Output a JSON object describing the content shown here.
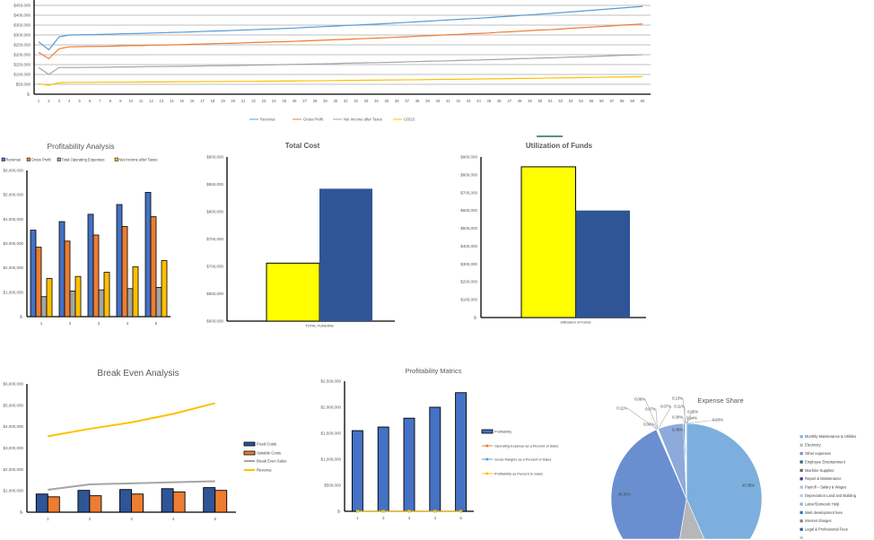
{
  "chart_data": [
    {
      "type": "line",
      "title": "",
      "grid": true,
      "legend": "bottom",
      "x": [
        "1",
        "2",
        "3",
        "4",
        "5",
        "6",
        "7",
        "8",
        "9",
        "10",
        "11",
        "12",
        "13",
        "14",
        "15",
        "16",
        "17",
        "18",
        "19",
        "20",
        "21",
        "22",
        "23",
        "24",
        "25",
        "26",
        "27",
        "28",
        "29",
        "30",
        "31",
        "32",
        "33",
        "34",
        "35",
        "36",
        "37",
        "38",
        "39",
        "40",
        "41",
        "42",
        "43",
        "44",
        "45",
        "46",
        "47",
        "48",
        "49",
        "50",
        "51",
        "52",
        "53",
        "54",
        "55",
        "56",
        "57",
        "58",
        "59",
        "60"
      ],
      "ylim": [
        0,
        450000
      ],
      "ytick_labels": [
        "$-",
        "$50,000",
        "$100,000",
        "$150,000",
        "$200,000",
        "$250,000",
        "$300,000",
        "$350,000",
        "$400,000",
        "$450,000"
      ],
      "series": [
        {
          "name": "Revenue",
          "color": "#5b9bd5",
          "values": [
            265000,
            225000,
            290000,
            300000,
            301000,
            302000,
            303000,
            304000,
            306000,
            307000,
            308000,
            310000,
            311000,
            313000,
            314000,
            316000,
            318000,
            320000,
            321000,
            323000,
            325000,
            327000,
            329000,
            331000,
            333000,
            335000,
            338000,
            340000,
            343000,
            345000,
            348000,
            350000,
            353000,
            355000,
            358000,
            361000,
            364000,
            367000,
            370000,
            373000,
            376000,
            379000,
            382000,
            385000,
            388000,
            392000,
            395000,
            399000,
            402000,
            406000,
            409000,
            413000,
            417000,
            421000,
            425000,
            429000,
            433000,
            437000,
            441000,
            445000
          ]
        },
        {
          "name": "Gross Profit",
          "color": "#ed7d31",
          "values": [
            212000,
            180000,
            230000,
            240000,
            241000,
            242000,
            242000,
            243000,
            245000,
            246000,
            246000,
            248000,
            249000,
            250000,
            251000,
            253000,
            254000,
            256000,
            257000,
            258000,
            260000,
            262000,
            263000,
            265000,
            266000,
            268000,
            270000,
            272000,
            274000,
            276000,
            278000,
            280000,
            282000,
            284000,
            286000,
            289000,
            291000,
            294000,
            296000,
            298000,
            301000,
            303000,
            306000,
            308000,
            310000,
            314000,
            316000,
            319000,
            322000,
            325000,
            327000,
            330000,
            334000,
            337000,
            340000,
            343000,
            346000,
            350000,
            353000,
            356000
          ]
        },
        {
          "name": "Net Income after Taxes",
          "color": "#a5a5a5",
          "values": [
            135000,
            100000,
            135000,
            135000,
            135000,
            136000,
            136000,
            137000,
            138000,
            138000,
            139000,
            140000,
            140000,
            141000,
            141000,
            142000,
            143000,
            144000,
            144000,
            145000,
            146000,
            147000,
            148000,
            149000,
            150000,
            151000,
            152000,
            153000,
            154000,
            155000,
            157000,
            158000,
            159000,
            160000,
            161000,
            162000,
            164000,
            165000,
            167000,
            168000,
            169000,
            171000,
            172000,
            173000,
            175000,
            176000,
            178000,
            180000,
            181000,
            183000,
            184000,
            186000,
            188000,
            189000,
            191000,
            193000,
            195000,
            197000,
            198000,
            200000
          ]
        },
        {
          "name": "COGS",
          "color": "#ffc000",
          "values": [
            53000,
            45000,
            58000,
            60000,
            60000,
            60000,
            61000,
            61000,
            61000,
            61000,
            62000,
            62000,
            62000,
            63000,
            63000,
            63000,
            64000,
            64000,
            64000,
            65000,
            65000,
            65000,
            66000,
            66000,
            67000,
            67000,
            68000,
            68000,
            69000,
            69000,
            70000,
            70000,
            71000,
            71000,
            72000,
            72000,
            73000,
            73000,
            74000,
            75000,
            75000,
            76000,
            76000,
            77000,
            78000,
            78000,
            79000,
            80000,
            80000,
            81000,
            82000,
            83000,
            83000,
            84000,
            85000,
            86000,
            87000,
            87000,
            88000,
            89000
          ]
        }
      ]
    },
    {
      "type": "bar",
      "title": "Profitability Analysis",
      "grid": false,
      "legend": "top",
      "categories": [
        "1",
        "2",
        "3",
        "4",
        "5"
      ],
      "ylim": [
        0,
        6000000
      ],
      "ytick_labels": [
        "$-",
        "$1,000,000",
        "$2,000,000",
        "$3,000,000",
        "$4,000,000",
        "$5,000,000",
        "$6,000,000"
      ],
      "series": [
        {
          "name": "Revenue",
          "color": "#4472c4",
          "values": [
            3550000,
            3900000,
            4200000,
            4600000,
            5100000
          ]
        },
        {
          "name": "Gross Profit",
          "color": "#ed7d31",
          "values": [
            2850000,
            3100000,
            3350000,
            3700000,
            4100000
          ]
        },
        {
          "name": "Total Operating Expenses",
          "color": "#a5a5a5",
          "values": [
            820000,
            1050000,
            1100000,
            1150000,
            1200000
          ]
        },
        {
          "name": "Net Income after Taxes",
          "color": "#ffc000",
          "values": [
            1570000,
            1650000,
            1820000,
            2050000,
            2300000
          ]
        }
      ]
    },
    {
      "type": "bar",
      "title": "Total Cost",
      "grid": false,
      "categories": [
        "TOTAL FUNDING"
      ],
      "ylim": [
        600000,
        900000
      ],
      "ytick_labels": [
        "$600,000",
        "$650,000",
        "$700,000",
        "$750,000",
        "$800,000",
        "$850,000",
        "$900,000"
      ],
      "series": [
        {
          "color": "#ffff00",
          "values": [
            706000
          ]
        },
        {
          "color": "#2f5597",
          "values": [
            842000
          ]
        }
      ]
    },
    {
      "type": "bar",
      "title": "Utilization of Funds",
      "grid": false,
      "categories": [
        "Utilization of Funds"
      ],
      "ylim": [
        0,
        900000
      ],
      "ytick_labels": [
        "$-",
        "$100,000",
        "$200,000",
        "$300,000",
        "$400,000",
        "$500,000",
        "$600,000",
        "$700,000",
        "$800,000",
        "$900,000"
      ],
      "series": [
        {
          "color": "#ffff00",
          "values": [
            845000
          ]
        },
        {
          "color": "#2f5597",
          "values": [
            600000
          ]
        }
      ]
    },
    {
      "type": "bar",
      "title": "Break Even Analysis",
      "grid": false,
      "legend": "right",
      "categories": [
        "1",
        "2",
        "3",
        "4",
        "5"
      ],
      "ylim": [
        0,
        6000000
      ],
      "ytick_labels": [
        "$-",
        "$1,000,000",
        "$2,000,000",
        "$3,000,000",
        "$4,000,000",
        "$5,000,000",
        "$6,000,000"
      ],
      "series": [
        {
          "name": "Fixed Costs",
          "kind": "bar",
          "color": "#2f5597",
          "values": [
            850000,
            1020000,
            1060000,
            1100000,
            1150000
          ]
        },
        {
          "name": "Variable Costs",
          "kind": "bar",
          "color": "#ed7d31",
          "values": [
            720000,
            770000,
            850000,
            950000,
            1020000
          ]
        },
        {
          "name": "Break Even Sales",
          "kind": "line",
          "color": "#a5a5a5",
          "values": [
            1050000,
            1300000,
            1350000,
            1400000,
            1450000
          ]
        },
        {
          "name": "Revenue",
          "kind": "line",
          "color": "#ffc000",
          "values": [
            3550000,
            3900000,
            4200000,
            4600000,
            5100000
          ]
        }
      ]
    },
    {
      "type": "bar",
      "title": "Profitability Matrics",
      "grid": false,
      "legend": "right",
      "categories": [
        "1",
        "2",
        "3",
        "4",
        "5"
      ],
      "ylim": [
        0,
        2500000
      ],
      "ytick_labels": [
        "$-",
        "$500,000",
        "$1,000,000",
        "$1,500,000",
        "$2,000,000",
        "$2,500,000"
      ],
      "series": [
        {
          "name": "Profitability",
          "kind": "bar",
          "color": "#4472c4",
          "values": [
            1550000,
            1620000,
            1790000,
            2000000,
            2280000
          ]
        },
        {
          "name": "Operating Expense as a Percent of Sales",
          "kind": "line",
          "color": "#ed7d31",
          "values": [
            0,
            0,
            0,
            0,
            0
          ]
        },
        {
          "name": "Gross Margins as a Percent of Sales",
          "kind": "line",
          "color": "#5b9bd5",
          "values": [
            0,
            0,
            0,
            0,
            0
          ]
        },
        {
          "name": "Profitability as Percent to Sales",
          "kind": "line",
          "color": "#ffc000",
          "values": [
            0,
            0,
            0,
            0,
            0
          ]
        }
      ]
    },
    {
      "type": "pie",
      "title": "Expense Share",
      "legend": "right",
      "slices": [
        {
          "label": "Monthly Maintenance & Utilities",
          "value": 43.38,
          "value_label": "43.38%",
          "color": "#7cafdd"
        },
        {
          "label": "Electricity",
          "value": 9.28,
          "value_label": "",
          "color": "#b7b7b7"
        },
        {
          "label": "Other expenses",
          "value": 40.81,
          "value_label": "40.81%",
          "color": "#6a8fd0"
        },
        {
          "label": "Employee Entertainment",
          "value": 0.08,
          "value_label": "0.08%",
          "color": "#255e91"
        },
        {
          "label": "Machine Supplies",
          "value": 0.11,
          "value_label": "0.11%",
          "color": "#636363"
        },
        {
          "label": "Repair & Maintenance",
          "value": 0.07,
          "value_label": "0.07%",
          "color": "#264478"
        },
        {
          "label": "Payroll – Salary & Wages",
          "value": 0.06,
          "value_label": "0.06%",
          "color": "#9dc3e6"
        },
        {
          "label": "Depreciation Land and Building",
          "value": 0.07,
          "value_label": "0.07%",
          "color": "#c9c9c9"
        },
        {
          "label": "Labor/Domestic Help",
          "value": 5.48,
          "value_label": "5.48%",
          "color": "#8eaadb"
        },
        {
          "label": "Web development fees",
          "value": 0.3,
          "value_label": "0.30%",
          "color": "#2e75b6"
        },
        {
          "label": "Internet charges",
          "value": 0.11,
          "value_label": "0.11%",
          "color": "#7f7f7f"
        },
        {
          "label": "Legal & Professional Fees",
          "value": 0.13,
          "value_label": "0.13%",
          "color": "#2f5597"
        },
        {
          "value": 0.05,
          "value_label": "0.05%",
          "color": "#b4c7e7"
        },
        {
          "value": 0.04,
          "value_label": "0.04%",
          "color": "#a9a9a9"
        },
        {
          "value": 0.03,
          "value_label": "0.03%",
          "color": "#5b9bd5"
        }
      ]
    }
  ]
}
